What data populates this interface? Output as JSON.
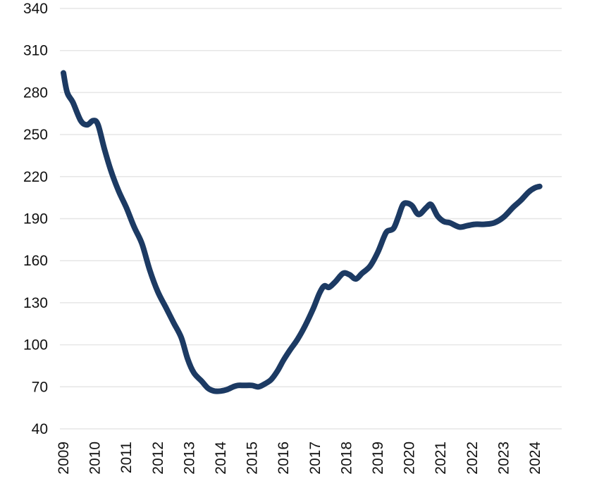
{
  "chart_data": {
    "type": "line",
    "title": "",
    "xlabel": "",
    "ylabel": "",
    "ylim": [
      40,
      340
    ],
    "yticks": [
      40,
      70,
      100,
      130,
      160,
      190,
      220,
      250,
      280,
      310,
      340
    ],
    "xlim": [
      2009,
      2024.45
    ],
    "xticks": [
      "2009",
      "2010",
      "2011",
      "2012",
      "2013",
      "2014",
      "2015",
      "2016",
      "2017",
      "2018",
      "2019",
      "2020",
      "2021",
      "2022",
      "2023",
      "2024"
    ],
    "grid": true,
    "legend": "none",
    "series": [
      {
        "color": "#1c3a63",
        "points": [
          [
            2009.0,
            294
          ],
          [
            2009.12,
            280
          ],
          [
            2009.3,
            273
          ],
          [
            2009.55,
            260
          ],
          [
            2009.75,
            257
          ],
          [
            2009.95,
            260
          ],
          [
            2010.1,
            257
          ],
          [
            2010.3,
            240
          ],
          [
            2010.5,
            225
          ],
          [
            2010.75,
            210
          ],
          [
            2011.0,
            198
          ],
          [
            2011.25,
            184
          ],
          [
            2011.5,
            172
          ],
          [
            2011.75,
            153
          ],
          [
            2012.0,
            138
          ],
          [
            2012.25,
            127
          ],
          [
            2012.5,
            116
          ],
          [
            2012.75,
            105
          ],
          [
            2012.95,
            90
          ],
          [
            2013.15,
            80
          ],
          [
            2013.4,
            74
          ],
          [
            2013.6,
            69
          ],
          [
            2013.8,
            67
          ],
          [
            2014.0,
            67
          ],
          [
            2014.2,
            68
          ],
          [
            2014.4,
            70
          ],
          [
            2014.55,
            71
          ],
          [
            2014.75,
            71
          ],
          [
            2015.0,
            71
          ],
          [
            2015.2,
            70
          ],
          [
            2015.4,
            72
          ],
          [
            2015.6,
            75
          ],
          [
            2015.8,
            81
          ],
          [
            2016.0,
            89
          ],
          [
            2016.2,
            96
          ],
          [
            2016.45,
            104
          ],
          [
            2016.7,
            114
          ],
          [
            2016.95,
            126
          ],
          [
            2017.15,
            137
          ],
          [
            2017.3,
            142
          ],
          [
            2017.45,
            141
          ],
          [
            2017.65,
            145
          ],
          [
            2017.9,
            151
          ],
          [
            2018.1,
            150
          ],
          [
            2018.3,
            147
          ],
          [
            2018.5,
            151
          ],
          [
            2018.75,
            156
          ],
          [
            2019.0,
            166
          ],
          [
            2019.2,
            177
          ],
          [
            2019.3,
            181
          ],
          [
            2019.5,
            183
          ],
          [
            2019.65,
            191
          ],
          [
            2019.8,
            200
          ],
          [
            2019.95,
            201
          ],
          [
            2020.1,
            199
          ],
          [
            2020.3,
            193
          ],
          [
            2020.55,
            198
          ],
          [
            2020.7,
            200
          ],
          [
            2020.9,
            192
          ],
          [
            2021.1,
            188
          ],
          [
            2021.3,
            187
          ],
          [
            2021.6,
            184
          ],
          [
            2021.85,
            185
          ],
          [
            2022.1,
            186
          ],
          [
            2022.4,
            186
          ],
          [
            2022.7,
            187
          ],
          [
            2023.0,
            191
          ],
          [
            2023.3,
            198
          ],
          [
            2023.55,
            203
          ],
          [
            2023.8,
            209
          ],
          [
            2024.0,
            212
          ],
          [
            2024.15,
            213
          ]
        ]
      }
    ]
  }
}
